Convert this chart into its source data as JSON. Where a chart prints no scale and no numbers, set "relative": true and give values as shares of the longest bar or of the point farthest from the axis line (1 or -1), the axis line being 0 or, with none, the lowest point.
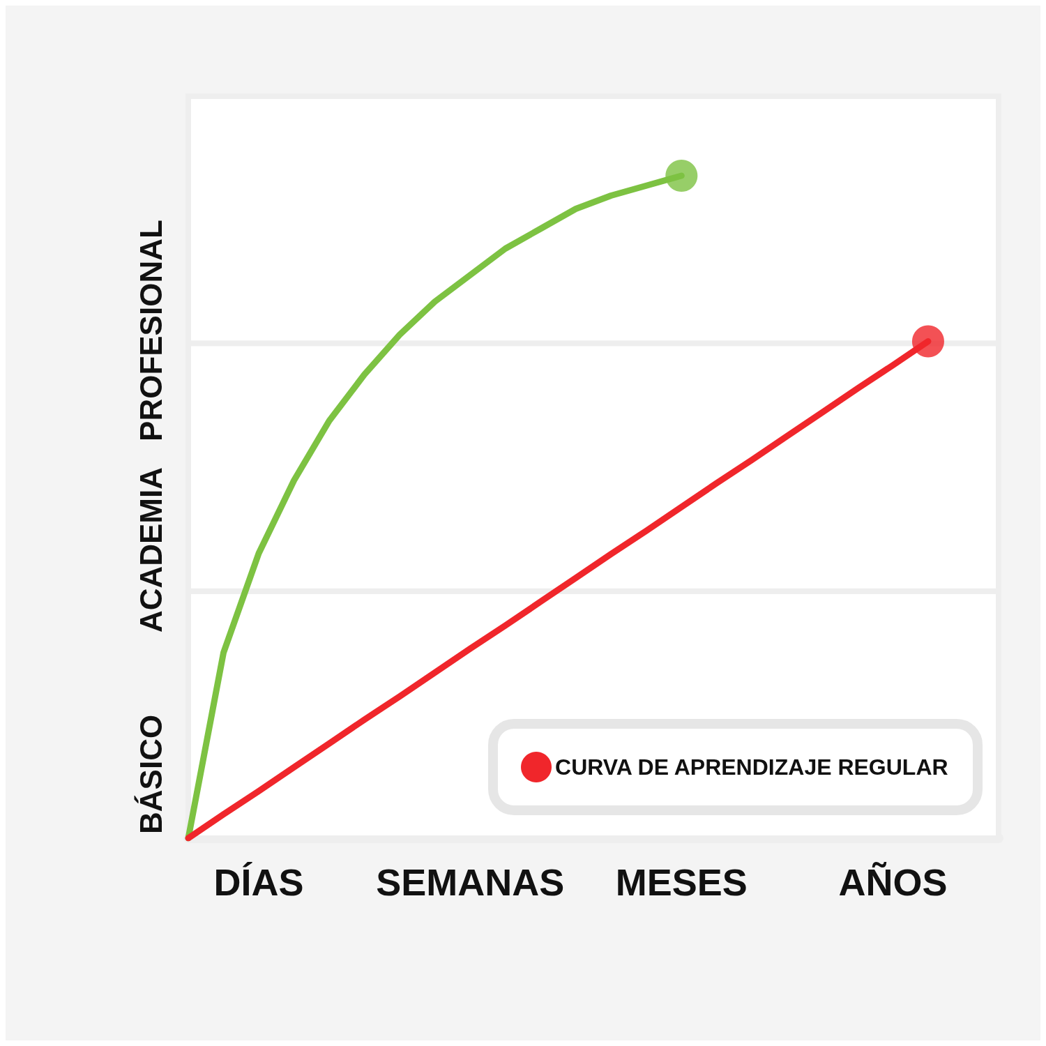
{
  "chart_data": {
    "type": "line",
    "relative": true,
    "categories": [
      null,
      null,
      "DÍAS",
      null,
      null,
      null,
      null,
      null,
      "SEMANAS",
      null,
      null,
      null,
      null,
      null,
      "MESES",
      null,
      null,
      null,
      null,
      null,
      "AÑOS",
      null,
      null,
      null
    ],
    "bands": [
      {
        "axis": "y",
        "from": 0,
        "to": 0.373,
        "label": "BÁSICO"
      },
      {
        "axis": "y",
        "from": 0.373,
        "to": 0.747,
        "label": "ACADEMIA"
      },
      {
        "axis": "y",
        "from": 0.747,
        "to": 1.12,
        "label": "PROFESIONAL"
      }
    ],
    "legend": "bottom right",
    "series": [
      {
        "color": "#7dc242",
        "values": [
          0,
          0.28,
          0.43,
          0.54,
          0.63,
          0.7,
          0.76,
          0.81,
          0.85,
          0.89,
          0.92,
          0.95,
          0.97,
          0.985,
          1,
          null,
          null,
          null,
          null,
          null,
          null,
          null,
          null,
          null
        ]
      },
      {
        "name": "CURVA DE APRENDIZAJE REGULAR",
        "color": "#f0262b",
        "values": [
          0,
          0.036,
          0.071,
          0.107,
          0.143,
          0.179,
          0.214,
          0.25,
          0.286,
          0.321,
          0.357,
          0.393,
          0.429,
          0.464,
          0.5,
          0.536,
          0.571,
          0.607,
          0.643,
          0.679,
          0.714,
          0.75,
          null,
          null
        ]
      },
      {
        "type": "scatter",
        "marker": "circle",
        "color": "#7dc242",
        "values": [
          null,
          null,
          null,
          null,
          null,
          null,
          null,
          null,
          null,
          null,
          null,
          null,
          null,
          null,
          1,
          null,
          null,
          null,
          null,
          null,
          null,
          null,
          null,
          null
        ]
      },
      {
        "type": "scatter",
        "marker": "circle",
        "color": "#f0262b",
        "values": [
          null,
          null,
          null,
          null,
          null,
          null,
          null,
          null,
          null,
          null,
          null,
          null,
          null,
          null,
          null,
          null,
          null,
          null,
          null,
          null,
          null,
          0.75,
          null,
          null
        ]
      }
    ]
  }
}
